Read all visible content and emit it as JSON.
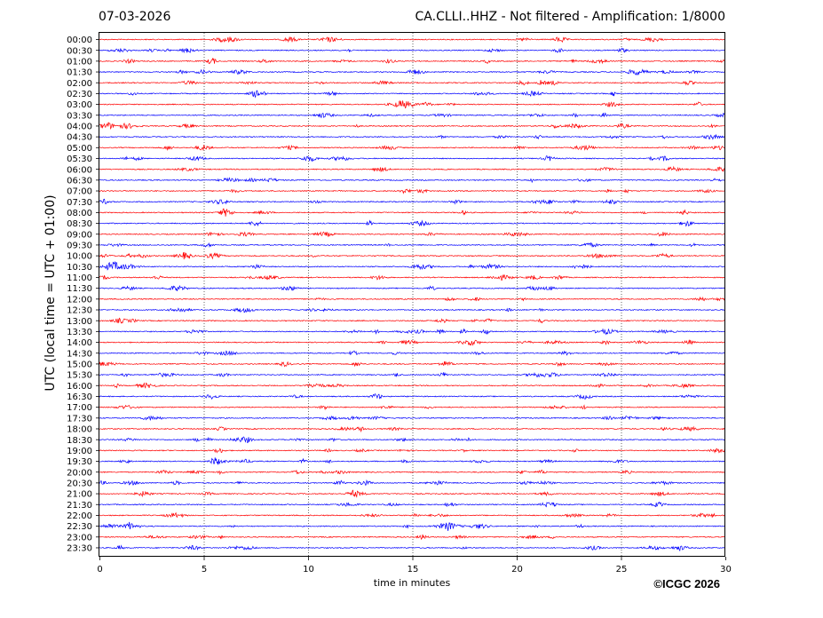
{
  "header": {
    "date": "07-03-2026",
    "title": "CA.CLLI..HHZ - Not filtered - Amplification: 1/8000"
  },
  "footer": {
    "credit": "©ICGC 2026"
  },
  "chart_data": {
    "type": "line",
    "title": "CA.CLLI..HHZ - Not filtered - Amplification: 1/8000",
    "xlabel": "time in minutes",
    "ylabel": "UTC (local time = UTC + 01:00)",
    "xlim": [
      0,
      30
    ],
    "xticks": [
      0,
      5,
      10,
      15,
      20,
      25,
      30
    ],
    "vertical_grid": "dotted",
    "row_labels": [
      "00:00",
      "00:30",
      "01:00",
      "01:30",
      "02:00",
      "02:30",
      "03:00",
      "03:30",
      "04:00",
      "04:30",
      "05:00",
      "05:30",
      "06:00",
      "06:30",
      "07:00",
      "07:30",
      "08:00",
      "08:30",
      "09:00",
      "09:30",
      "10:00",
      "10:30",
      "11:00",
      "11:30",
      "12:00",
      "12:30",
      "13:00",
      "13:30",
      "14:00",
      "14:30",
      "15:00",
      "15:30",
      "16:00",
      "16:30",
      "17:00",
      "17:30",
      "18:00",
      "18:30",
      "19:00",
      "19:30",
      "20:00",
      "20:30",
      "21:00",
      "21:30",
      "22:00",
      "22:30",
      "23:00",
      "23:30"
    ],
    "trace_colors": [
      "#ff0000",
      "#0000ff"
    ],
    "trace_color_pattern": "alternating"
  }
}
